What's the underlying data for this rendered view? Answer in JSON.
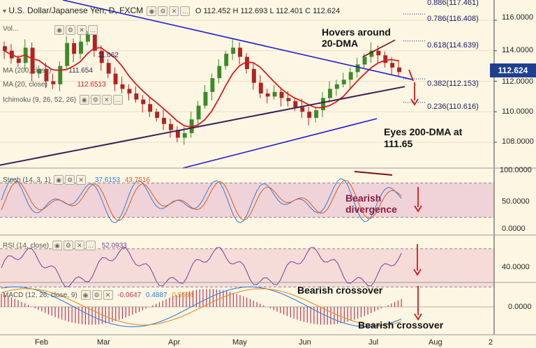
{
  "header": {
    "symbol": "U.S. Dollar/Japanese Yen, D, FXCM",
    "ohlc": "O 112.452  H 112.693  L 112.401  C 112.624",
    "volume_label": "Vol...",
    "indicators": [
      {
        "label": "MA (200, close)",
        "value": "111.654"
      },
      {
        "label": "MA (20, close)",
        "value": "112.6513"
      },
      {
        "label": "Ichimoku (9, 26, 52, 26)",
        "value": ""
      }
    ],
    "partial_value": "11.062"
  },
  "price_axis": {
    "ticks": [
      "116.0000",
      "114.0000",
      "112.0000",
      "110.0000",
      "108.0000"
    ],
    "current_price": "112.624",
    "current_price_color": "#1e3f8f"
  },
  "fibonacci": [
    {
      "ratio": "0.886",
      "level": "117.461"
    },
    {
      "ratio": "0.786",
      "level": "116.408"
    },
    {
      "ratio": "0.618",
      "level": "114.639"
    },
    {
      "ratio": "0.382",
      "level": "112.153"
    },
    {
      "ratio": "0.236",
      "level": "110.616"
    }
  ],
  "annotations": {
    "hover_line1": "Hovers around",
    "hover_line2": "20-DMA",
    "eyes_line1": "Eyes 200-DMA at",
    "eyes_line2": "111.65",
    "bearish_div_line1": "Bearish",
    "bearish_div_line2": "divergence",
    "bearish_cross1": "Bearish crossover",
    "bearish_cross2": "Bearish crossover"
  },
  "stoch": {
    "label": "Stoch (14, 3, 1)",
    "k_value": "37.6153",
    "d_value": "43.7516",
    "ticks": [
      "100.0000",
      "50.0000",
      "0.0000"
    ]
  },
  "rsi": {
    "label": "RSI (14, close)",
    "value": "52.0933",
    "ticks": [
      "40.0000"
    ]
  },
  "macd": {
    "label": "MACD (12, 26, close, 9)",
    "hist_value": "-0.0647",
    "macd_value": "0.4887",
    "signal_value": "0.5534",
    "ticks": [
      "0.0000"
    ]
  },
  "time_axis": {
    "labels": [
      "Feb",
      "Mar",
      "Apr",
      "May",
      "Jun",
      "Jul",
      "Aug",
      "2"
    ]
  },
  "colors": {
    "background": "#fdf6e3",
    "bull_candle": "#3d8a2a",
    "bear_candle": "#b22222",
    "ma20": "#e01a1a",
    "ma200": "#3a1f55",
    "trendline": "#1f1fcf",
    "stoch_band": "#e9c7d6",
    "rsi_band": "#f2d6d6",
    "macd_line": "#2f7fd8",
    "signal_line": "#e38a2a",
    "arrow": "#d21a1a"
  },
  "chart_data": [
    {
      "type": "candlestick",
      "title": "U.S. Dollar/Japanese Yen, D, FXCM",
      "ylim": [
        106.5,
        117.6
      ],
      "x": [
        "Feb",
        "Mar",
        "Apr",
        "May",
        "Jun",
        "Jul",
        "Aug"
      ],
      "last_close": 112.624,
      "series": [
        {
          "name": "MA (20, close)",
          "last": 112.6513
        },
        {
          "name": "MA (200, close)",
          "last": 111.654
        }
      ],
      "fib_levels": [
        117.461,
        116.408,
        114.639,
        112.153,
        110.616
      ],
      "closes_approx": [
        114.0,
        113.5,
        113.2,
        114.2,
        112.5,
        112.8,
        112.0,
        111.8,
        113.0,
        114.5,
        113.8,
        114.6,
        115.1,
        114.0,
        113.2,
        112.5,
        111.8,
        111.5,
        111.2,
        110.8,
        110.5,
        110.0,
        109.6,
        109.2,
        108.8,
        108.3,
        108.6,
        109.5,
        110.4,
        111.3,
        112.2,
        113.0,
        113.8,
        114.2,
        113.6,
        112.8,
        111.9,
        111.2,
        111.0,
        111.3,
        110.9,
        110.7,
        110.3,
        110.0,
        109.6,
        110.1,
        110.9,
        111.5,
        111.8,
        112.1,
        112.6,
        113.1,
        113.6,
        114.0,
        113.7,
        113.2,
        112.9,
        112.6
      ]
    },
    {
      "type": "line",
      "title": "Stoch (14, 3, 1)",
      "ylim": [
        0,
        100
      ],
      "series": [
        {
          "name": "%K",
          "last": 37.6153
        },
        {
          "name": "%D",
          "last": 43.7516
        }
      ]
    },
    {
      "type": "line",
      "title": "RSI (14, close)",
      "series": [
        {
          "name": "RSI",
          "last": 52.0933
        }
      ]
    },
    {
      "type": "line",
      "title": "MACD (12, 26, close, 9)",
      "series": [
        {
          "name": "Histogram",
          "last": -0.0647
        },
        {
          "name": "MACD",
          "last": 0.4887
        },
        {
          "name": "Signal",
          "last": 0.5534
        }
      ]
    }
  ]
}
